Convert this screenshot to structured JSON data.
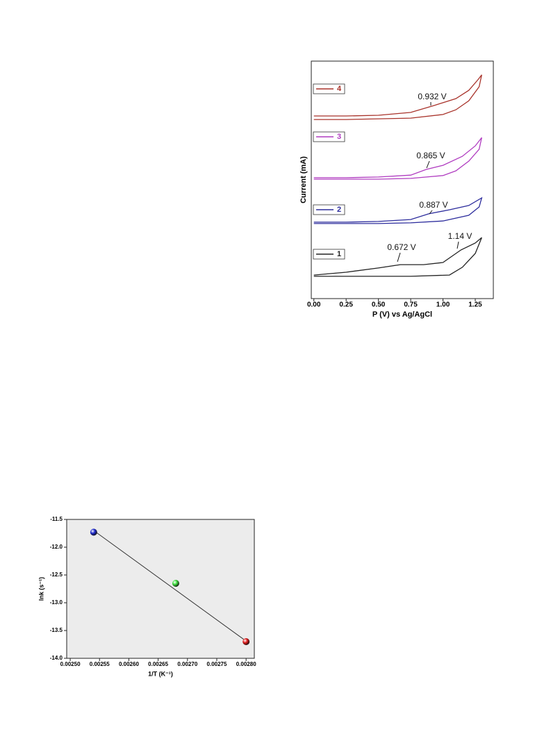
{
  "chart_data": [
    {
      "type": "line",
      "x_label": "P (V) vs Ag/AgCl",
      "y_label": "Current (mA)",
      "xlim": [
        -0.02,
        1.39
      ],
      "ylim": [
        0,
        100
      ],
      "xticks": [
        {
          "value": 0,
          "label": "0.00"
        },
        {
          "value": 0.25,
          "label": "0.25"
        },
        {
          "value": 0.5,
          "label": "0.50"
        },
        {
          "value": 0.75,
          "label": "0.75"
        },
        {
          "value": 1,
          "label": "1.00"
        },
        {
          "value": 1.25,
          "label": "1.25"
        }
      ],
      "plot_background": "#ffffff",
      "series": [
        {
          "name": "1",
          "color": "#222222",
          "annotations": [
            "0.672 V",
            "1.14 V"
          ],
          "x": [
            0,
            0.25,
            0.5,
            0.67,
            0.85,
            1.0,
            1.14,
            1.25,
            1.3,
            1.25,
            1.15,
            1.05,
            0.75,
            0.5,
            0.25,
            0
          ],
          "values": [
            9.9,
            11.1,
            12.9,
            14.3,
            14.3,
            15.2,
            20.5,
            23.4,
            25.7,
            19.0,
            13.2,
            9.9,
            9.4,
            9.4,
            9.4,
            9.4
          ]
        },
        {
          "name": "2",
          "color": "#2b2b9c",
          "annotations": [
            "0.887 V"
          ],
          "x": [
            0,
            0.25,
            0.5,
            0.75,
            0.89,
            1.05,
            1.2,
            1.3,
            1.28,
            1.2,
            1.0,
            0.75,
            0.5,
            0.25,
            0
          ],
          "values": [
            32.2,
            32.2,
            32.5,
            33.3,
            35.7,
            37.4,
            39.2,
            42.4,
            38.6,
            35.1,
            32.7,
            31.9,
            31.6,
            31.6,
            31.6
          ]
        },
        {
          "name": "3",
          "color": "#b03cc0",
          "annotations": [
            "0.865 V"
          ],
          "x": [
            0,
            0.25,
            0.5,
            0.75,
            0.87,
            1.0,
            1.15,
            1.25,
            1.3,
            1.28,
            1.2,
            1.1,
            1.0,
            0.75,
            0.5,
            0.25,
            0
          ],
          "values": [
            50.9,
            50.9,
            51.2,
            52.0,
            54.4,
            56.1,
            59.9,
            64.3,
            67.8,
            62.9,
            57.9,
            53.8,
            51.8,
            50.6,
            50.3,
            50.3,
            50.3
          ]
        },
        {
          "name": "4",
          "color": "#a8322a",
          "annotations": [
            "0.932 V"
          ],
          "x": [
            0,
            0.25,
            0.5,
            0.75,
            0.93,
            1.1,
            1.2,
            1.27,
            1.3,
            1.28,
            1.2,
            1.1,
            1.0,
            0.75,
            0.5,
            0.25,
            0
          ],
          "values": [
            76.9,
            76.9,
            77.2,
            78.4,
            81.3,
            84.2,
            87.7,
            92.1,
            94.2,
            89.2,
            83.3,
            79.5,
            77.5,
            76.0,
            75.7,
            75.4,
            75.4
          ]
        }
      ]
    },
    {
      "type": "scatter",
      "x_label": "1/T (K⁻¹)",
      "y_label": "lnk (s⁻¹)",
      "xlim": [
        0.002494,
        0.002814
      ],
      "ylim": [
        -14.0,
        -11.5
      ],
      "xticks": [
        {
          "value": 0.0025,
          "label": "0.00250"
        },
        {
          "value": 0.00255,
          "label": "0.00255"
        },
        {
          "value": 0.0026,
          "label": "0.00260"
        },
        {
          "value": 0.00265,
          "label": "0.00265"
        },
        {
          "value": 0.0027,
          "label": "0.00270"
        },
        {
          "value": 0.00275,
          "label": "0.00275"
        },
        {
          "value": 0.0028,
          "label": "0.00280"
        }
      ],
      "yticks": [
        -11.5,
        {
          "value": -12.0,
          "label": "-12.0"
        },
        -12.5,
        {
          "value": -13.0,
          "label": "-13.0"
        },
        -13.5,
        {
          "value": -14.0,
          "label": "-14.0"
        }
      ],
      "plot_background": "#ececec",
      "x": [
        0.00254,
        0.00268,
        0.0028
      ],
      "values": [
        -11.73,
        -12.65,
        -13.7
      ],
      "colors": [
        "#1f2bd0",
        "#3ee03e",
        "#e01a1a"
      ],
      "fit": {
        "x": [
          0.00254,
          0.0028
        ],
        "values": [
          -11.7,
          -13.69
        ]
      }
    }
  ]
}
